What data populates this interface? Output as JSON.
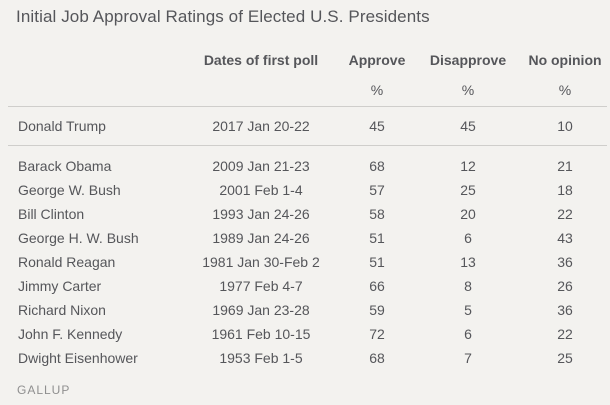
{
  "title": "Initial Job Approval Ratings of Elected U.S. Presidents",
  "columns": {
    "dates": "Dates of first poll",
    "approve": "Approve",
    "disapprove": "Disapprove",
    "no_opinion": "No opinion"
  },
  "unit": "%",
  "highlight_row": {
    "name": "Donald Trump",
    "date": "2017 Jan 20-22",
    "approve": "45",
    "disapprove": "45",
    "no_opinion": "10"
  },
  "rows": [
    {
      "name": "Barack Obama",
      "date": "2009 Jan 21-23",
      "approve": "68",
      "disapprove": "12",
      "no_opinion": "21"
    },
    {
      "name": "George W. Bush",
      "date": "2001 Feb 1-4",
      "approve": "57",
      "disapprove": "25",
      "no_opinion": "18"
    },
    {
      "name": "Bill Clinton",
      "date": "1993 Jan 24-26",
      "approve": "58",
      "disapprove": "20",
      "no_opinion": "22"
    },
    {
      "name": "George H. W. Bush",
      "date": "1989 Jan 24-26",
      "approve": "51",
      "disapprove": "6",
      "no_opinion": "43"
    },
    {
      "name": "Ronald Reagan",
      "date": "1981 Jan 30-Feb 2",
      "approve": "51",
      "disapprove": "13",
      "no_opinion": "36"
    },
    {
      "name": "Jimmy Carter",
      "date": "1977 Feb 4-7",
      "approve": "66",
      "disapprove": "8",
      "no_opinion": "26"
    },
    {
      "name": "Richard Nixon",
      "date": "1969 Jan 23-28",
      "approve": "59",
      "disapprove": "5",
      "no_opinion": "36"
    },
    {
      "name": "John F. Kennedy",
      "date": "1961 Feb 10-15",
      "approve": "72",
      "disapprove": "6",
      "no_opinion": "22"
    },
    {
      "name": "Dwight Eisenhower",
      "date": "1953 Feb 1-5",
      "approve": "68",
      "disapprove": "7",
      "no_opinion": "25"
    }
  ],
  "source": "GALLUP"
}
